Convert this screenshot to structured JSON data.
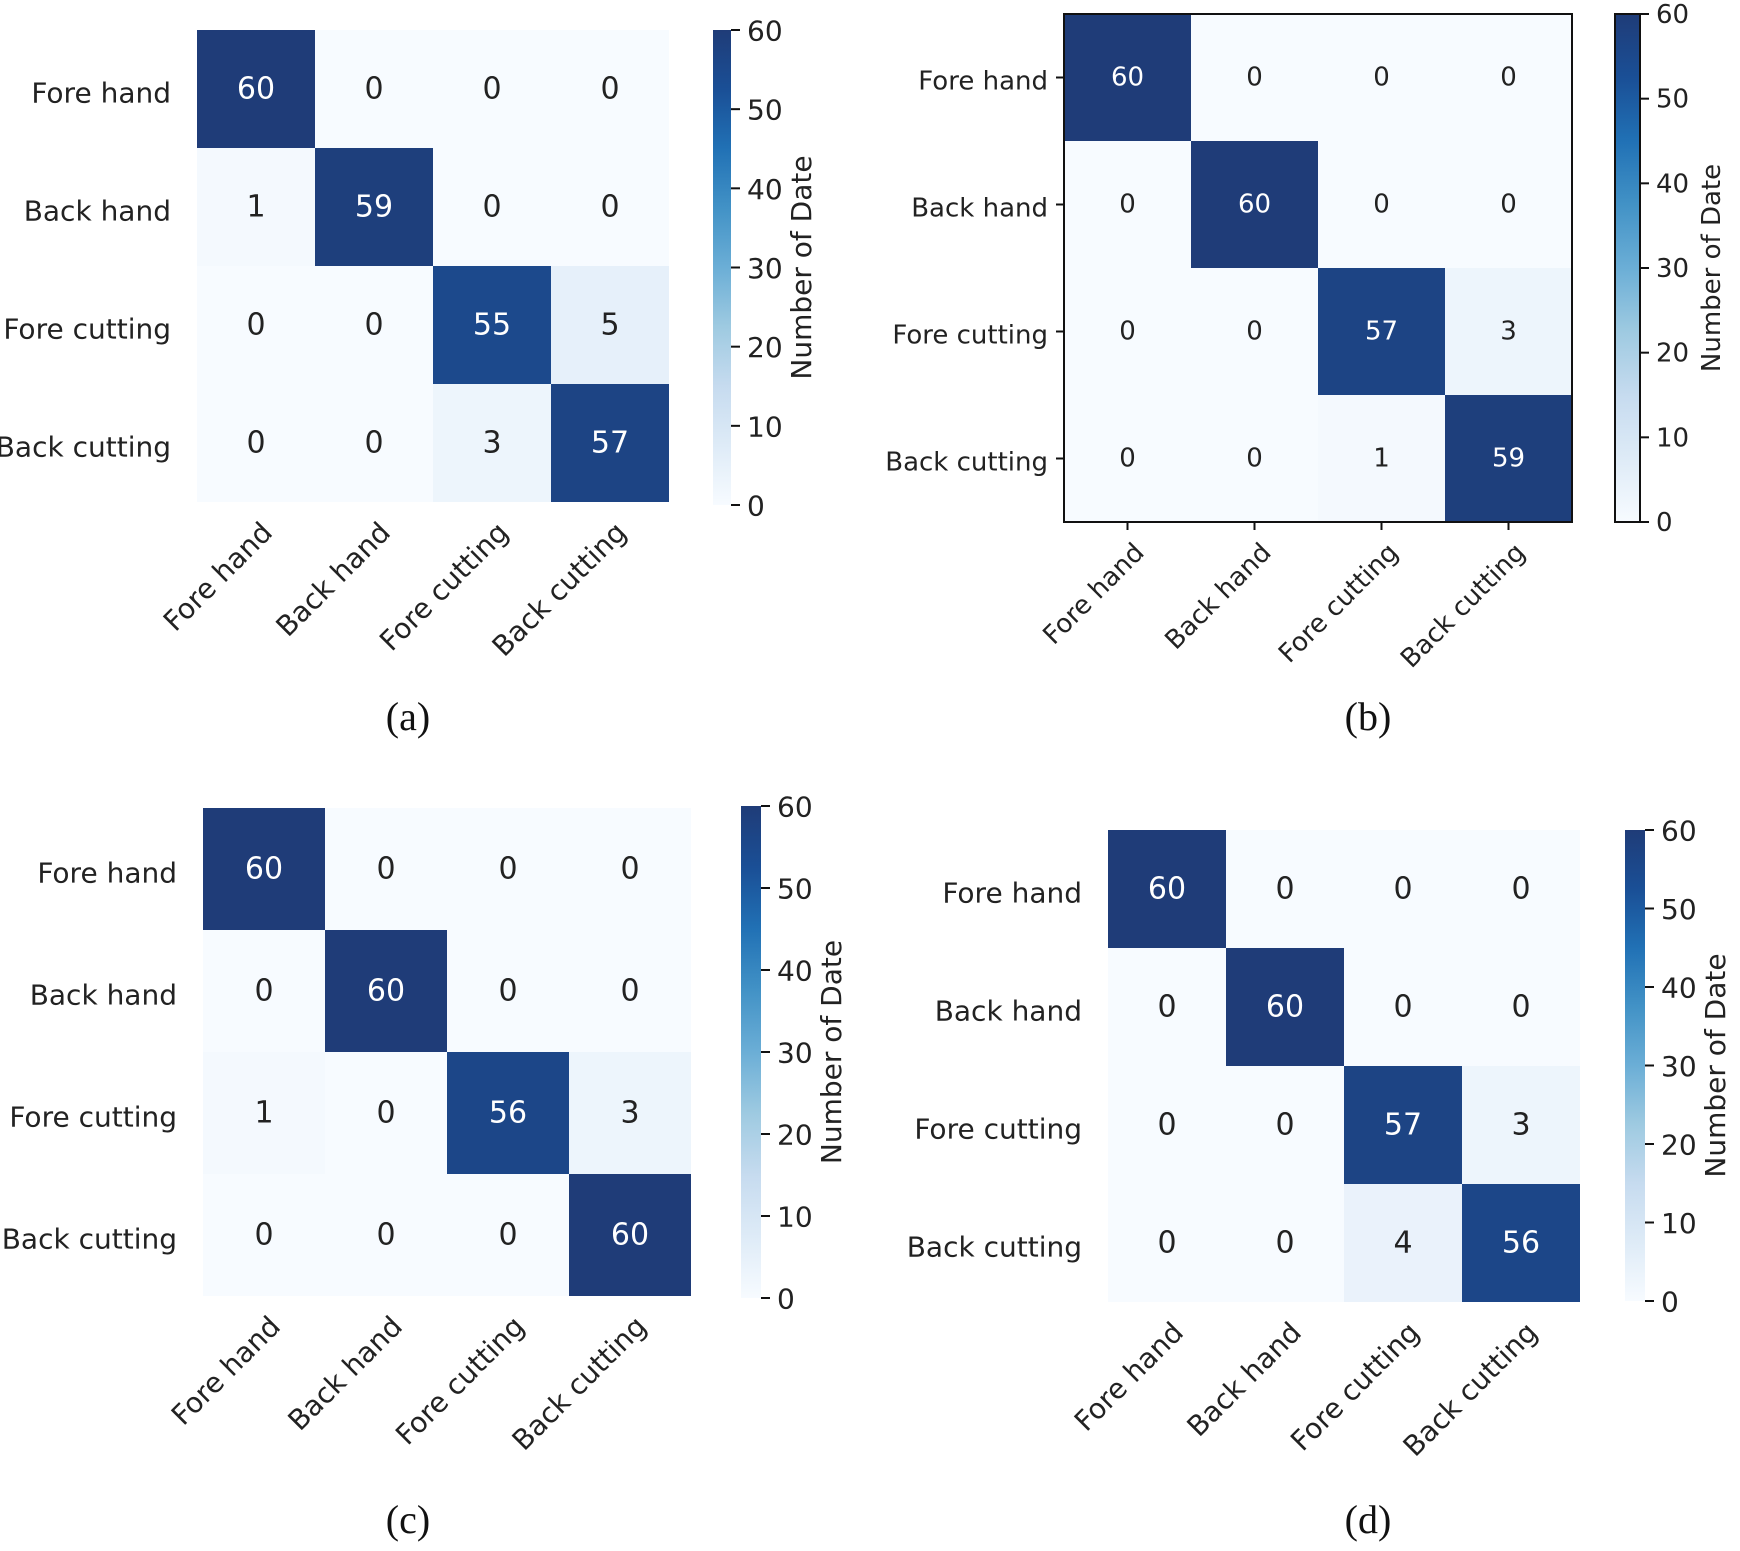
{
  "figure": {
    "panels": [
      "(a)",
      "(b)",
      "(c)",
      "(d)"
    ]
  },
  "chart_data": [
    {
      "type": "heatmap",
      "panel": "(a)",
      "title": "",
      "row_labels": [
        "Fore hand",
        "Back hand",
        "Fore cutting",
        "Back cutting"
      ],
      "col_labels": [
        "Fore hand",
        "Back hand",
        "Fore cutting",
        "Back cutting"
      ],
      "values": [
        [
          60,
          0,
          0,
          0
        ],
        [
          1,
          59,
          0,
          0
        ],
        [
          0,
          0,
          55,
          5
        ],
        [
          0,
          0,
          3,
          57
        ]
      ],
      "colorbar": {
        "label": "Number of Date",
        "range": [
          0,
          60
        ],
        "ticks": [
          "0",
          "10",
          "20",
          "30",
          "40",
          "50",
          "60"
        ]
      },
      "frame": false
    },
    {
      "type": "heatmap",
      "panel": "(b)",
      "title": "",
      "row_labels": [
        "Fore hand",
        "Back hand",
        "Fore cutting",
        "Back cutting"
      ],
      "col_labels": [
        "Fore hand",
        "Back hand",
        "Fore cutting",
        "Back cutting"
      ],
      "values": [
        [
          60,
          0,
          0,
          0
        ],
        [
          0,
          60,
          0,
          0
        ],
        [
          0,
          0,
          57,
          3
        ],
        [
          0,
          0,
          1,
          59
        ]
      ],
      "colorbar": {
        "label": "Number of Date",
        "range": [
          0,
          60
        ],
        "ticks": [
          "0",
          "10",
          "20",
          "30",
          "40",
          "50",
          "60"
        ]
      },
      "frame": true
    },
    {
      "type": "heatmap",
      "panel": "(c)",
      "title": "",
      "row_labels": [
        "Fore hand",
        "Back hand",
        "Fore cutting",
        "Back cutting"
      ],
      "col_labels": [
        "Fore hand",
        "Back hand",
        "Fore cutting",
        "Back cutting"
      ],
      "values": [
        [
          60,
          0,
          0,
          0
        ],
        [
          0,
          60,
          0,
          0
        ],
        [
          1,
          0,
          56,
          3
        ],
        [
          0,
          0,
          0,
          60
        ]
      ],
      "colorbar": {
        "label": "Number of Date",
        "range": [
          0,
          60
        ],
        "ticks": [
          "0",
          "10",
          "20",
          "30",
          "40",
          "50",
          "60"
        ]
      },
      "frame": false
    },
    {
      "type": "heatmap",
      "panel": "(d)",
      "title": "",
      "row_labels": [
        "Fore hand",
        "Back hand",
        "Fore cutting",
        "Back cutting"
      ],
      "col_labels": [
        "Fore hand",
        "Back hand",
        "Fore cutting",
        "Back cutting"
      ],
      "values": [
        [
          60,
          0,
          0,
          0
        ],
        [
          0,
          60,
          0,
          0
        ],
        [
          0,
          0,
          57,
          3
        ],
        [
          0,
          0,
          4,
          56
        ]
      ],
      "colorbar": {
        "label": "Number of Date",
        "range": [
          0,
          60
        ],
        "ticks": [
          "0",
          "10",
          "20",
          "30",
          "40",
          "50",
          "60"
        ]
      },
      "frame": false
    }
  ]
}
